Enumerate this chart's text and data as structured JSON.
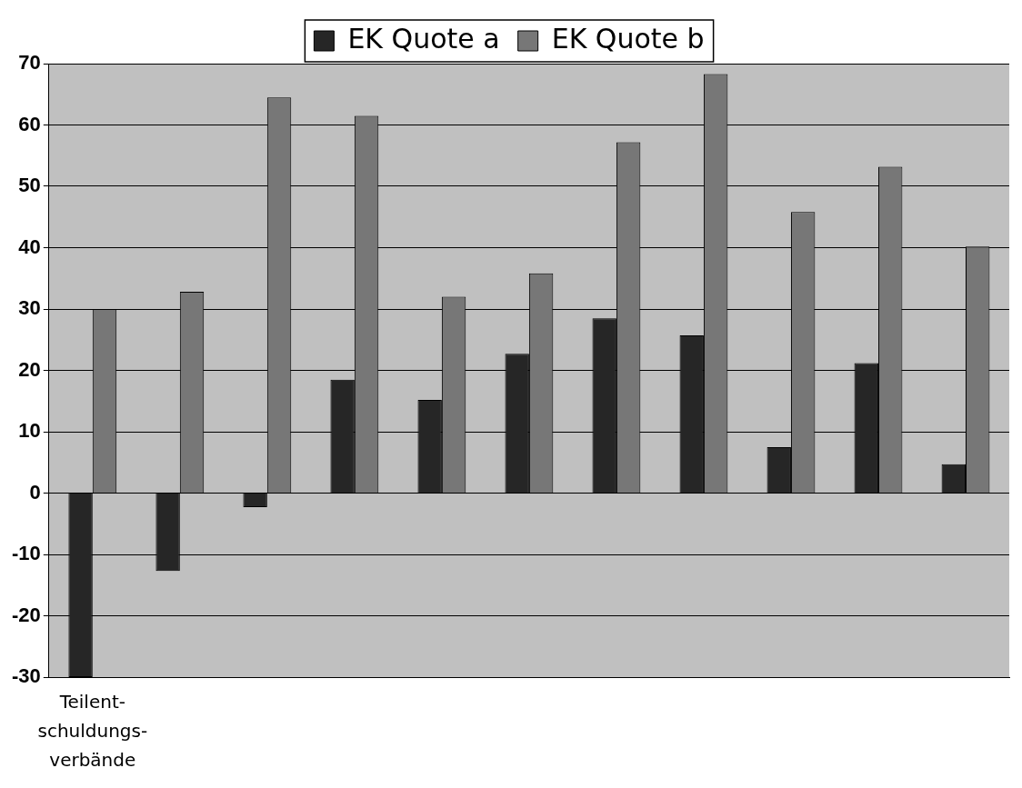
{
  "chart_data": {
    "type": "bar",
    "categories": [
      "Teilent-\nschuldungs-\nverbände",
      null,
      null,
      null,
      null,
      null,
      null,
      null,
      null,
      null,
      null
    ],
    "series": [
      {
        "name": "EK Quote a",
        "color": "#262626",
        "values": [
          -30,
          -12.7,
          -2.3,
          18.5,
          15.2,
          22.7,
          28.5,
          25.7,
          7.5,
          21.2,
          4.7
        ]
      },
      {
        "name": "EK Quote b",
        "color": "#777777",
        "values": [
          30,
          32.8,
          64.5,
          61.5,
          32,
          35.8,
          57.2,
          68.3,
          45.8,
          53.2,
          40.2
        ]
      }
    ],
    "ylim": [
      -30,
      70
    ],
    "yticks": [
      -30,
      -20,
      -10,
      0,
      10,
      20,
      30,
      40,
      50,
      60,
      70
    ],
    "grid": "y",
    "legend": "top"
  }
}
